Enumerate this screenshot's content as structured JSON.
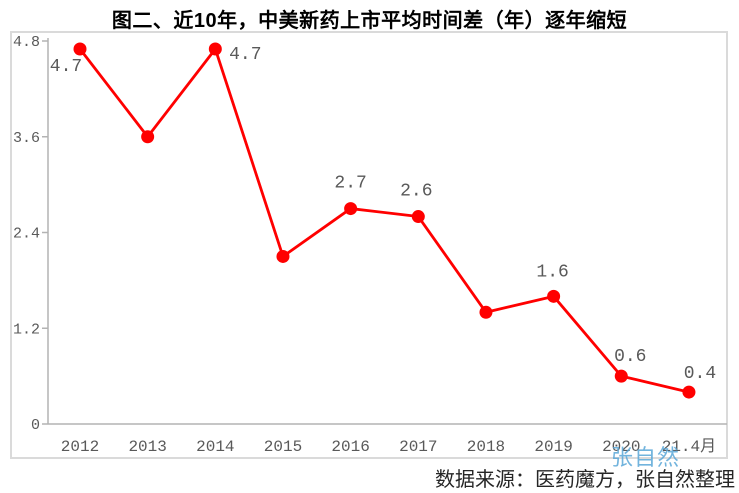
{
  "title": "图二、近10年，中美新药上市平均时间差（年）逐年缩短",
  "watermark": "张自然",
  "footer": {
    "source": "数据来源：医药魔方，张自然整理"
  },
  "colors": {
    "line": "#ff0000",
    "marker": "#ff0000",
    "axis": "#b3b3b3",
    "border": "#dadada",
    "tick_label": "#595959",
    "data_label": "#595959",
    "title": "#000000",
    "watermark": "#5aa7d8",
    "source_text": "#262626"
  },
  "chart_data": {
    "type": "line",
    "title": "图二、近10年，中美新药上市平均时间差（年）逐年缩短",
    "categories": [
      "2012",
      "2013",
      "2014",
      "2015",
      "2016",
      "2017",
      "2018",
      "2019",
      "2020",
      "21.4月"
    ],
    "values": [
      4.7,
      3.6,
      4.7,
      2.1,
      2.7,
      2.6,
      1.4,
      1.6,
      0.6,
      0.4
    ],
    "point_labels": [
      "4.7",
      "",
      "4.7",
      "",
      "2.7",
      "2.6",
      "",
      "1.6",
      "0.6",
      "0.4"
    ],
    "label_offsets": [
      [
        -14,
        22
      ],
      null,
      [
        30,
        10
      ],
      null,
      [
        0,
        -21
      ],
      [
        -2,
        -21
      ],
      null,
      [
        -1,
        -20
      ],
      [
        9,
        -15
      ],
      [
        11,
        -14
      ]
    ],
    "xlabel": "",
    "ylabel": "",
    "y_axis": {
      "tick_values": [
        0,
        1.2,
        2.4,
        3.6,
        4.8
      ],
      "tick_labels": [
        "0",
        "1.2",
        "2.4",
        "3.6",
        "4.8"
      ],
      "range": [
        0,
        4.8
      ]
    },
    "grid": false,
    "legend": false,
    "marker": "circle",
    "caption_source": "数据来源：医药魔方，张自然整理"
  }
}
